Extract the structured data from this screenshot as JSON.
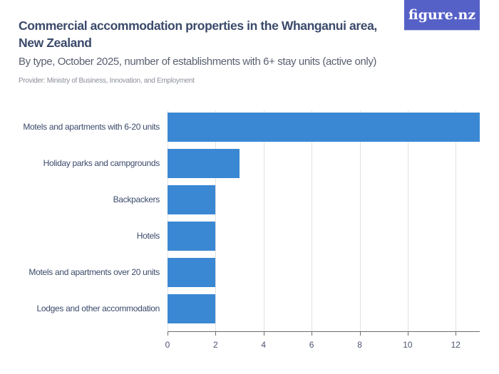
{
  "header": {
    "title": "Commercial accommodation properties in the Whanganui area, New Zealand",
    "subtitle": "By type, October 2025, number of establishments with 6+ stay units (active only)",
    "provider": "Provider: Ministry of Business, Innovation, and Employment",
    "logo": "figure.nz"
  },
  "colors": {
    "bar": "#3a88d3",
    "title": "#3b4a6b",
    "logo_bg": "#5661c7"
  },
  "chart_data": {
    "type": "bar",
    "orientation": "horizontal",
    "title": "Commercial accommodation properties in the Whanganui area, New Zealand",
    "subtitle": "By type, October 2025, number of establishments with 6+ stay units (active only)",
    "categories": [
      "Motels and apartments with 6-20 units",
      "Holiday parks and campgrounds",
      "Backpackers",
      "Hotels",
      "Motels and apartments over 20 units",
      "Lodges and other accommodation"
    ],
    "values": [
      13,
      3,
      2,
      2,
      2,
      2
    ],
    "xlabel": "",
    "ylabel": "",
    "xlim": [
      0,
      13
    ],
    "xticks": [
      0,
      2,
      4,
      6,
      8,
      10,
      12
    ],
    "grid": true,
    "legend": "none"
  }
}
